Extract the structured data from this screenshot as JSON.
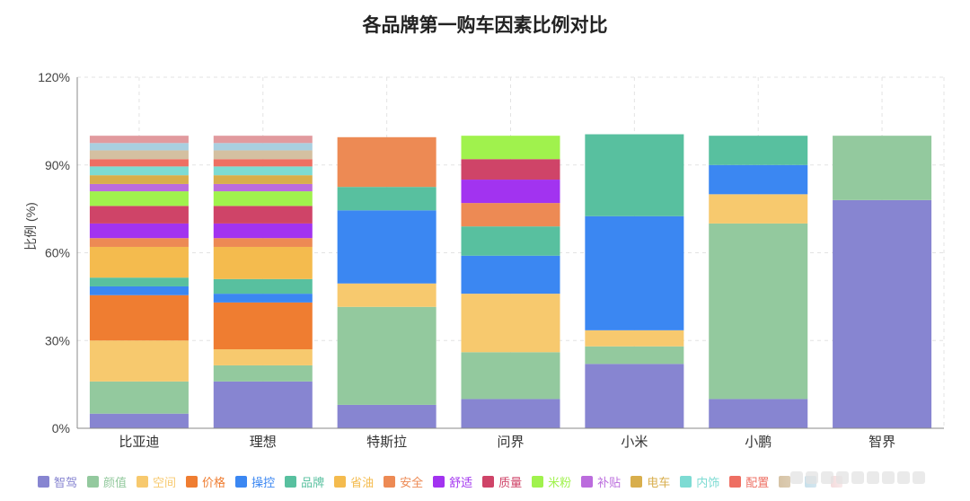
{
  "chart_data": {
    "type": "bar",
    "stacked": true,
    "title": "各品牌第一购车因素比例对比",
    "xlabel": "",
    "ylabel": "比例 (%)",
    "ylim": [
      0,
      120
    ],
    "yticks": [
      0,
      30,
      60,
      90,
      120
    ],
    "ytick_labels": [
      "0%",
      "30%",
      "60%",
      "90%",
      "120%"
    ],
    "grid": true,
    "legend_position": "bottom",
    "categories": [
      "比亚迪",
      "理想",
      "特斯拉",
      "问界",
      "小米",
      "小鹏",
      "智界"
    ],
    "series": [
      {
        "name": "智驾",
        "color": "#8785d1",
        "values": [
          5,
          16,
          8,
          10,
          22,
          10,
          78
        ]
      },
      {
        "name": "颜值",
        "color": "#93c99e",
        "values": [
          11,
          5.5,
          33.5,
          16,
          6,
          60,
          22
        ]
      },
      {
        "name": "空间",
        "color": "#f7c96e",
        "values": [
          14,
          5.5,
          8,
          20,
          5.5,
          10,
          0
        ]
      },
      {
        "name": "价格",
        "color": "#ef7d31",
        "values": [
          15.5,
          16,
          0,
          0,
          0,
          0,
          0
        ]
      },
      {
        "name": "操控",
        "color": "#3b87f2",
        "values": [
          3,
          3,
          25,
          13,
          39,
          10,
          0
        ]
      },
      {
        "name": "品牌",
        "color": "#58c09f",
        "values": [
          3,
          5,
          8,
          10,
          28,
          10,
          0
        ]
      },
      {
        "name": "省油",
        "color": "#f4bb4e",
        "values": [
          10.5,
          11,
          0,
          0,
          0,
          0,
          0
        ]
      },
      {
        "name": "安全",
        "color": "#ed8a54",
        "values": [
          3,
          3,
          17,
          8,
          0,
          0,
          0
        ]
      },
      {
        "name": "舒适",
        "color": "#a233f0",
        "values": [
          5,
          5,
          0,
          8,
          0,
          0,
          0
        ]
      },
      {
        "name": "质量",
        "color": "#cf4468",
        "values": [
          6,
          6,
          0,
          7,
          0,
          0,
          0
        ]
      },
      {
        "name": "米粉",
        "color": "#a0f24d",
        "values": [
          5,
          5,
          0,
          8,
          0,
          0,
          0
        ]
      },
      {
        "name": "补贴",
        "color": "#bb6cdd",
        "values": [
          2.5,
          2.5,
          0,
          0,
          0,
          0,
          0
        ]
      },
      {
        "name": "电车",
        "color": "#d8ae4c",
        "values": [
          3,
          3,
          0,
          0,
          0,
          0,
          0
        ]
      },
      {
        "name": "内饰",
        "color": "#7ddbd3",
        "values": [
          3,
          3,
          0,
          0,
          0,
          0,
          0
        ]
      },
      {
        "name": "配置",
        "color": "#ee6f63",
        "values": [
          2.5,
          2.5,
          0,
          0,
          0,
          0,
          0
        ]
      },
      {
        "name": "",
        "color": "#d4c0a1",
        "values": [
          3,
          3,
          0,
          0,
          0,
          0,
          0
        ]
      },
      {
        "name": "",
        "color": "#a9cfe0",
        "values": [
          2.5,
          2.5,
          0,
          0,
          0,
          0,
          0
        ]
      },
      {
        "name": "",
        "color": "#e19a9e",
        "values": [
          2.5,
          2.5,
          0,
          0,
          0,
          0,
          0
        ]
      }
    ]
  }
}
